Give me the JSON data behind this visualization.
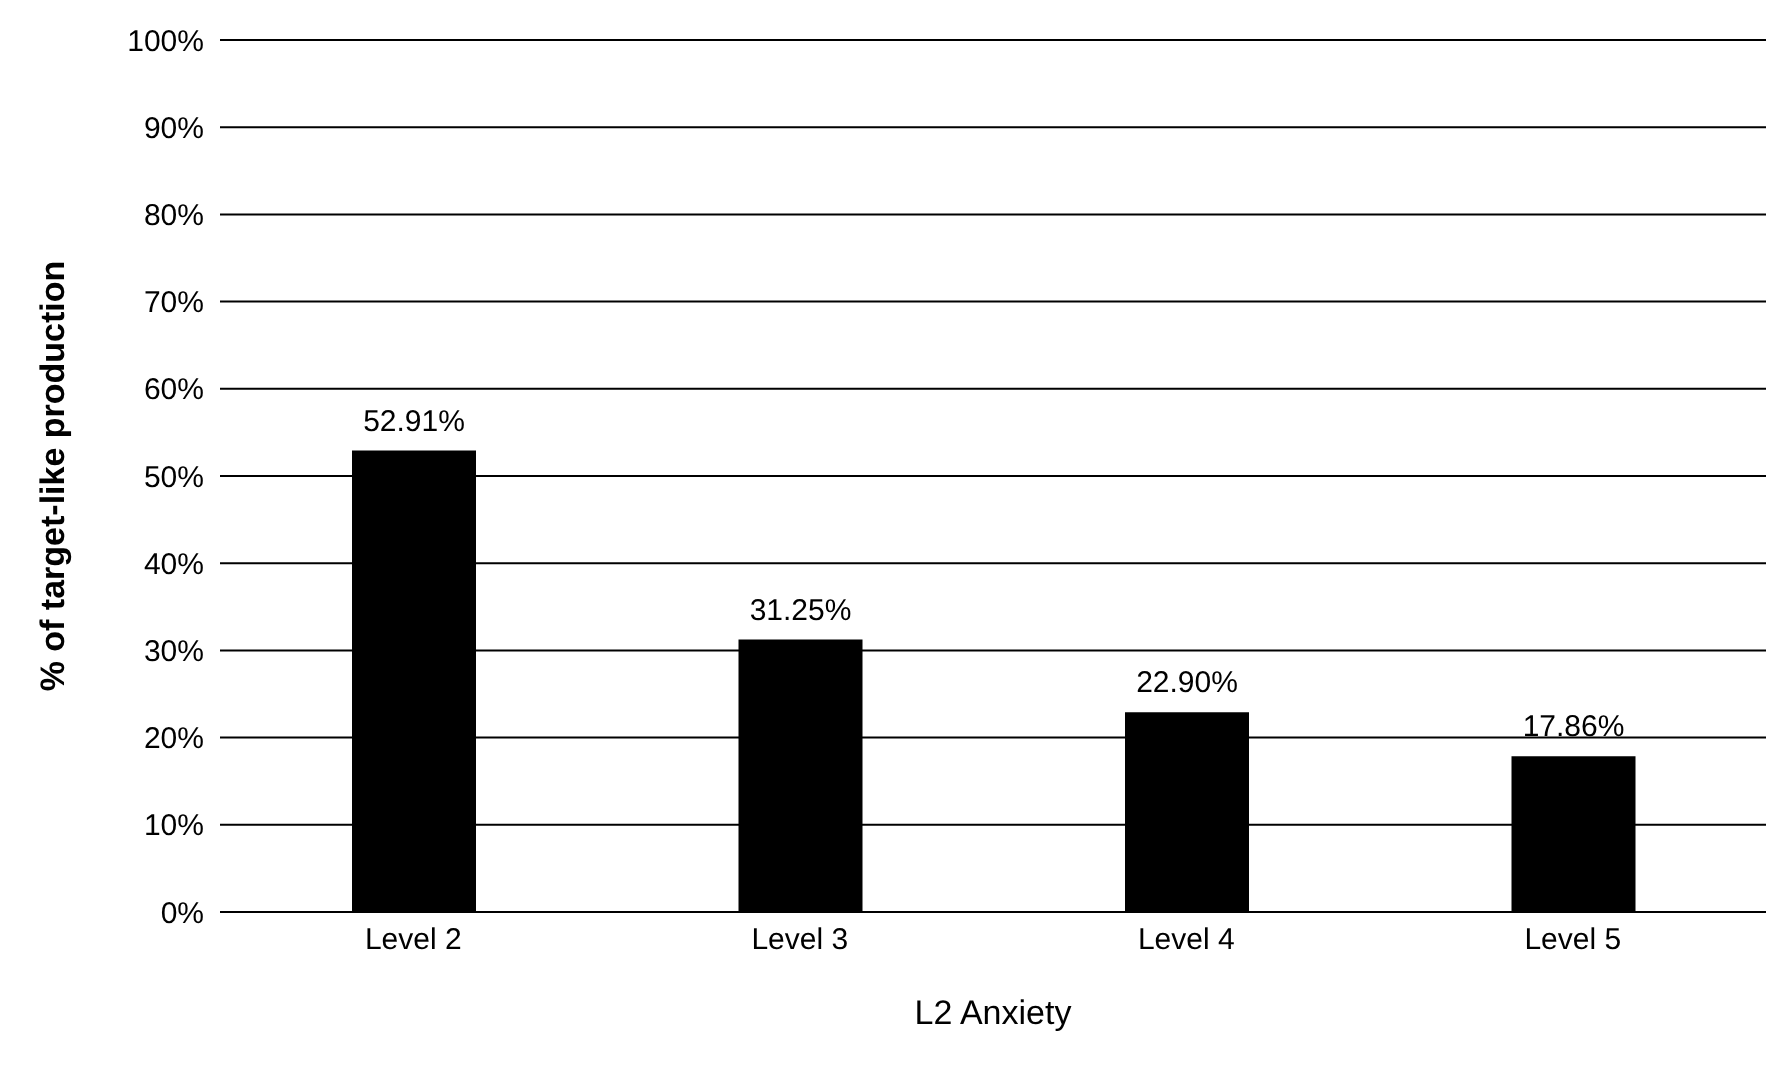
{
  "chart_data": {
    "type": "bar",
    "xlabel": "L2 Anxiety",
    "ylabel": "% of target-like production",
    "categories": [
      "Level 2",
      "Level 3",
      "Level 4",
      "Level 5"
    ],
    "values": [
      52.91,
      31.25,
      22.9,
      17.86
    ],
    "value_labels": [
      "52.91%",
      "31.25%",
      "22.90%",
      "17.86%"
    ],
    "color": "#000000",
    "ylim": [
      0,
      100
    ],
    "yticks": [
      {
        "value": 0,
        "label": "0%"
      },
      {
        "value": 10,
        "label": "10%"
      },
      {
        "value": 20,
        "label": "20%"
      },
      {
        "value": 30,
        "label": "30%"
      },
      {
        "value": 40,
        "label": "40%"
      },
      {
        "value": 50,
        "label": "50%"
      },
      {
        "value": 60,
        "label": "60%"
      },
      {
        "value": 70,
        "label": "70%"
      },
      {
        "value": 80,
        "label": "80%"
      },
      {
        "value": 90,
        "label": "90%"
      },
      {
        "value": 100,
        "label": "100%"
      }
    ],
    "grid": "y"
  }
}
